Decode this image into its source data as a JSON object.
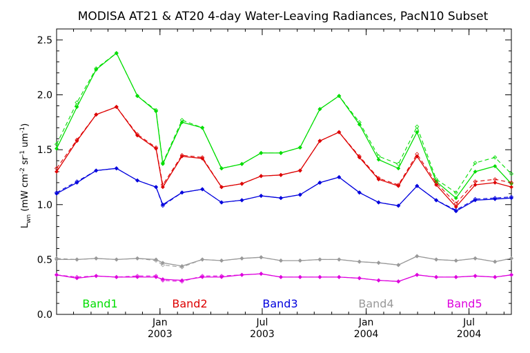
{
  "chart_data": {
    "type": "line",
    "title": "MODISA AT21 & AT20 4-day Water-Leaving Radiances, PacN10 Subset",
    "ylabel": "L_wn (mW cm^-2 sr^-1 um^-1)",
    "ylabel_main": "L",
    "ylabel_sub": "wn",
    "ylabel_rest": " (mW cm",
    "ylabel_sup1": "-2",
    "ylabel_mid": " sr",
    "ylabel_sup2": "-1",
    "ylabel_mid2": " um",
    "ylabel_sup3": "-1",
    "ylabel_end": ")",
    "xlabel": "",
    "ylim": [
      0.0,
      2.6
    ],
    "xlim": [
      "2002-07-02",
      "2004-09-14"
    ],
    "grid": false,
    "y_ticks": [
      "0.0",
      "0.5",
      "1.0",
      "1.5",
      "2.0",
      "2.5"
    ],
    "x_ticks": [
      {
        "date": "2003-01-01",
        "label_top": "Jan",
        "label_bottom": "2003"
      },
      {
        "date": "2003-07-01",
        "label_top": "Jul",
        "label_bottom": "2003"
      },
      {
        "date": "2004-01-01",
        "label_top": "Jan",
        "label_bottom": "2004"
      },
      {
        "date": "2004-07-01",
        "label_top": "Jul",
        "label_bottom": "2004"
      }
    ],
    "x": [
      "2002-07-02",
      "2002-08-07",
      "2002-09-10",
      "2002-10-16",
      "2002-11-22",
      "2002-12-25",
      "2003-01-06",
      "2003-02-09",
      "2003-03-17",
      "2003-04-20",
      "2003-05-26",
      "2003-06-29",
      "2003-08-03",
      "2003-09-06",
      "2003-10-11",
      "2003-11-14",
      "2003-12-20",
      "2004-01-23",
      "2004-02-27",
      "2004-03-31",
      "2004-05-04",
      "2004-06-08",
      "2004-07-12",
      "2004-08-16",
      "2004-09-14"
    ],
    "series": [
      {
        "name": "Band1",
        "color": "#00dd00",
        "values": [
          1.51,
          1.89,
          2.23,
          2.38,
          1.99,
          1.85,
          1.37,
          1.75,
          1.7,
          1.33,
          1.37,
          1.47,
          1.47,
          1.52,
          1.87,
          1.99,
          1.73,
          1.41,
          1.33,
          1.66,
          1.21,
          1.06,
          1.3,
          1.35,
          1.19
        ],
        "values_dashed": [
          1.55,
          1.93,
          2.24,
          2.38,
          1.99,
          1.86,
          1.38,
          1.77,
          1.7,
          1.33,
          1.37,
          1.47,
          1.47,
          1.52,
          1.87,
          1.99,
          1.75,
          1.44,
          1.37,
          1.71,
          1.23,
          1.11,
          1.38,
          1.43,
          1.28
        ]
      },
      {
        "name": "Band2",
        "color": "#dd0000",
        "values": [
          1.3,
          1.58,
          1.82,
          1.89,
          1.63,
          1.51,
          1.16,
          1.44,
          1.42,
          1.16,
          1.19,
          1.26,
          1.27,
          1.31,
          1.58,
          1.66,
          1.43,
          1.23,
          1.17,
          1.44,
          1.18,
          0.98,
          1.18,
          1.2,
          1.16
        ],
        "values_dashed": [
          1.33,
          1.59,
          1.82,
          1.89,
          1.64,
          1.52,
          1.18,
          1.45,
          1.43,
          1.16,
          1.19,
          1.26,
          1.27,
          1.31,
          1.58,
          1.66,
          1.44,
          1.24,
          1.18,
          1.46,
          1.2,
          1.01,
          1.21,
          1.23,
          1.2
        ]
      },
      {
        "name": "Band3",
        "color": "#0000dd",
        "values": [
          1.1,
          1.2,
          1.31,
          1.33,
          1.22,
          1.16,
          1.0,
          1.11,
          1.14,
          1.02,
          1.04,
          1.08,
          1.06,
          1.09,
          1.2,
          1.25,
          1.11,
          1.02,
          0.99,
          1.17,
          1.04,
          0.94,
          1.04,
          1.05,
          1.06
        ],
        "values_dashed": [
          1.11,
          1.21,
          1.31,
          1.33,
          1.22,
          1.16,
          0.99,
          1.11,
          1.14,
          1.02,
          1.04,
          1.08,
          1.06,
          1.09,
          1.2,
          1.25,
          1.11,
          1.02,
          0.99,
          1.17,
          1.04,
          0.95,
          1.05,
          1.06,
          1.07
        ]
      },
      {
        "name": "Band4",
        "color": "#999999",
        "values": [
          0.5,
          0.5,
          0.51,
          0.5,
          0.51,
          0.5,
          0.47,
          0.44,
          0.5,
          0.49,
          0.51,
          0.52,
          0.49,
          0.49,
          0.5,
          0.5,
          0.48,
          0.47,
          0.45,
          0.53,
          0.5,
          0.49,
          0.51,
          0.48,
          0.51
        ],
        "values_dashed": [
          0.51,
          0.5,
          0.51,
          0.5,
          0.51,
          0.49,
          0.45,
          0.43,
          0.5,
          0.49,
          0.51,
          0.52,
          0.49,
          0.49,
          0.5,
          0.5,
          0.48,
          0.47,
          0.45,
          0.53,
          0.5,
          0.49,
          0.51,
          0.48,
          0.51
        ]
      },
      {
        "name": "Band5",
        "color": "#dd00dd",
        "values": [
          0.36,
          0.33,
          0.35,
          0.34,
          0.34,
          0.34,
          0.32,
          0.31,
          0.34,
          0.34,
          0.36,
          0.37,
          0.34,
          0.34,
          0.34,
          0.34,
          0.33,
          0.31,
          0.3,
          0.36,
          0.34,
          0.34,
          0.35,
          0.34,
          0.36
        ],
        "values_dashed": [
          0.36,
          0.34,
          0.35,
          0.34,
          0.35,
          0.35,
          0.31,
          0.3,
          0.35,
          0.35,
          0.36,
          0.37,
          0.34,
          0.34,
          0.34,
          0.34,
          0.33,
          0.31,
          0.3,
          0.36,
          0.34,
          0.34,
          0.35,
          0.34,
          0.36
        ]
      }
    ],
    "legend": {
      "placement": "bottom-inside",
      "orientation": "horizontal"
    }
  }
}
